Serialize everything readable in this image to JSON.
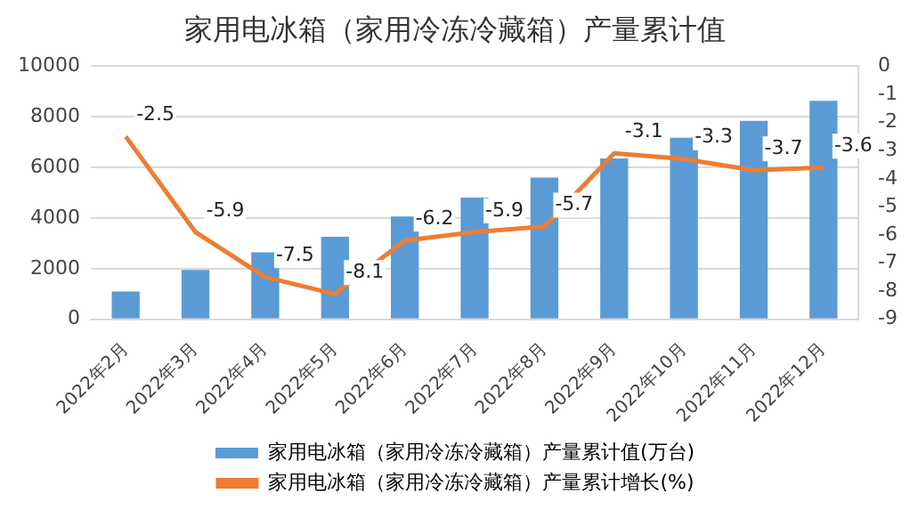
{
  "chart_data": {
    "type": "bar",
    "title": "家用电冰箱（家用冷冻冷藏箱）产量累计值",
    "categories": [
      "2022年2月",
      "2022年3月",
      "2022年4月",
      "2022年5月",
      "2022年6月",
      "2022年7月",
      "2022年8月",
      "2022年9月",
      "2022年10月",
      "2022年11月",
      "2022年12月"
    ],
    "series": [
      {
        "name": "家用电冰箱（家用冷冻冷藏箱）产量累计值(万台)",
        "color": "#5b9bd5",
        "values": [
          1100,
          1950,
          2650,
          3260,
          4060,
          4810,
          5600,
          6360,
          7170,
          7840,
          8630
        ]
      },
      {
        "name": "家用电冰箱（家用冷冻冷藏箱）产量累计增长(%)",
        "type": "line",
        "axis": "y2",
        "color": "#ed7d31",
        "values": [
          -2.5,
          -5.9,
          -7.5,
          -8.1,
          -6.2,
          -5.9,
          -5.7,
          -3.1,
          -3.3,
          -3.7,
          -3.6
        ],
        "value_labels": [
          "-2.5",
          "-5.9",
          "-7.5",
          "-8.1",
          "-6.2",
          "-5.9",
          "-5.7",
          "-3.1",
          "-3.3",
          "-3.7",
          "-3.6"
        ]
      }
    ],
    "ylim": [
      0,
      10000
    ],
    "yticks": [
      0,
      2000,
      4000,
      6000,
      8000,
      10000
    ],
    "y2lim": [
      -9,
      0
    ],
    "y2ticks": [
      -9,
      -8,
      -7,
      -6,
      -5,
      -4,
      -3,
      -2,
      -1,
      0
    ],
    "grid": "y",
    "legend": "bottom",
    "marker": "none",
    "line_style": "solid"
  }
}
